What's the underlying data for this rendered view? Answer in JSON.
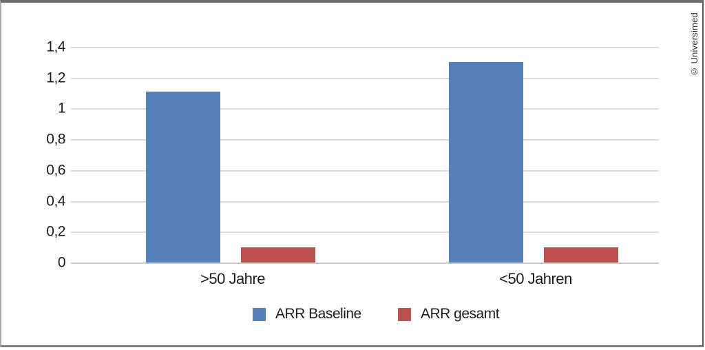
{
  "page": {
    "copyright": "© Universimed"
  },
  "chart_data": {
    "type": "bar",
    "title": "",
    "xlabel": "",
    "ylabel": "",
    "categories": [
      ">50 Jahre",
      "<50 Jahren"
    ],
    "series": [
      {
        "name": "ARR Baseline",
        "color": "#5580B9",
        "values": [
          1.11,
          1.3
        ]
      },
      {
        "name": "ARR gesamt",
        "color": "#BC524E",
        "values": [
          0.1,
          0.1
        ]
      }
    ],
    "ylim": [
      0,
      1.4
    ],
    "ytick_step": 0.2,
    "ytick_labels": [
      "0",
      "0,2",
      "0,4",
      "0,6",
      "0,8",
      "1",
      "1,2",
      "1,4"
    ],
    "decimal_separator": ",",
    "grid": true,
    "legend_position": "bottom-center"
  },
  "colors": {
    "grid": "#dcdcdc",
    "axis": "#c9c9c9",
    "text": "#1c1c1c"
  }
}
